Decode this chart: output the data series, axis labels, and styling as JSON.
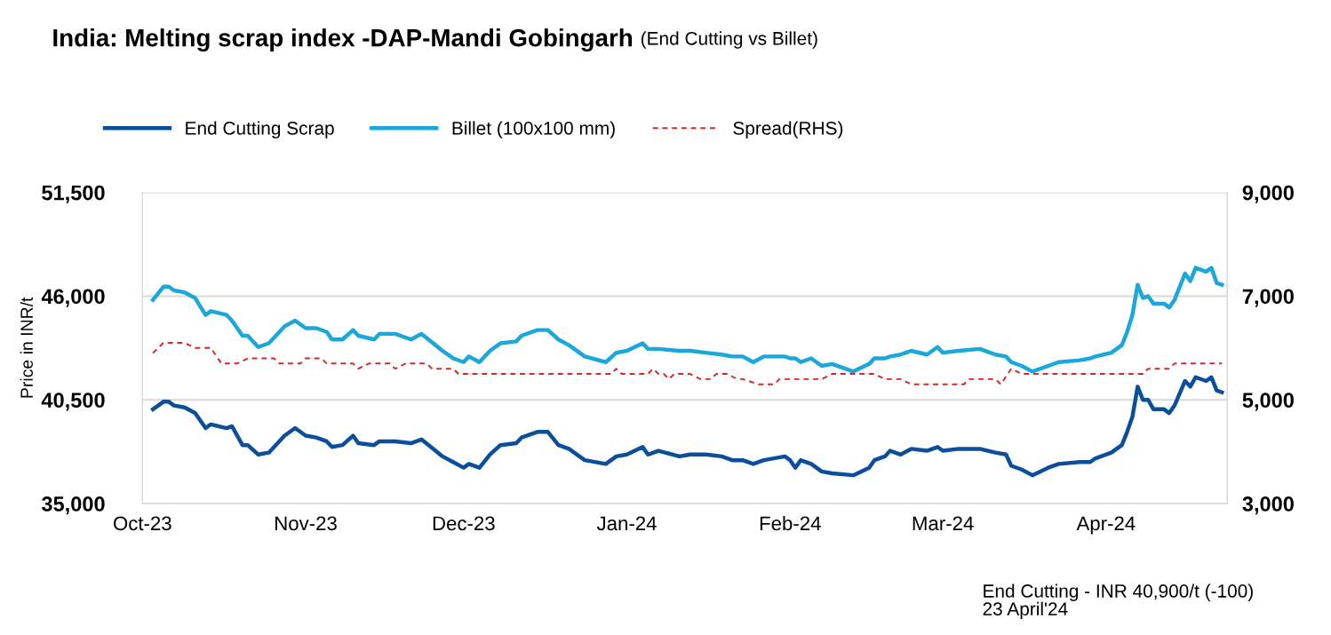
{
  "chart_data": {
    "type": "line",
    "title": "India: Melting scrap index -DAP-Mandi Gobingarh",
    "subtitle": "(End Cutting vs Billet)",
    "ylabel": "Price in INR/t",
    "x": [
      "2023-10-03",
      "2023-10-05",
      "2023-10-06",
      "2023-10-07",
      "2023-10-09",
      "2023-10-11",
      "2023-10-13",
      "2023-10-14",
      "2023-10-17",
      "2023-10-18",
      "2023-10-20",
      "2023-10-21",
      "2023-10-23",
      "2023-10-25",
      "2023-10-28",
      "2023-10-30",
      "2023-11-01",
      "2023-11-03",
      "2023-11-05",
      "2023-11-06",
      "2023-11-08",
      "2023-11-10",
      "2023-11-11",
      "2023-11-14",
      "2023-11-15",
      "2023-11-18",
      "2023-11-21",
      "2023-11-23",
      "2023-11-27",
      "2023-11-29",
      "2023-12-01",
      "2023-12-02",
      "2023-12-04",
      "2023-12-06",
      "2023-12-08",
      "2023-12-11",
      "2023-12-12",
      "2023-12-15",
      "2023-12-17",
      "2023-12-19",
      "2023-12-21",
      "2023-12-24",
      "2023-12-28",
      "2023-12-30",
      "2024-01-01",
      "2024-01-04",
      "2024-01-05",
      "2024-01-07",
      "2024-01-11",
      "2024-01-13",
      "2024-01-16",
      "2024-01-19",
      "2024-01-21",
      "2024-01-23",
      "2024-01-25",
      "2024-01-27",
      "2024-01-31",
      "2024-02-01",
      "2024-02-02",
      "2024-02-03",
      "2024-02-05",
      "2024-02-07",
      "2024-02-09",
      "2024-02-13",
      "2024-02-16",
      "2024-02-17",
      "2024-02-19",
      "2024-02-20",
      "2024-02-22",
      "2024-02-24",
      "2024-02-27",
      "2024-02-29",
      "2024-03-01",
      "2024-03-04",
      "2024-03-08",
      "2024-03-11",
      "2024-03-13",
      "2024-03-14",
      "2024-03-16",
      "2024-03-18",
      "2024-03-21",
      "2024-03-23",
      "2024-03-27",
      "2024-03-29",
      "2024-03-30",
      "2024-04-02",
      "2024-04-04",
      "2024-04-05",
      "2024-04-06",
      "2024-04-07",
      "2024-04-08",
      "2024-04-09",
      "2024-04-10",
      "2024-04-12",
      "2024-04-13",
      "2024-04-14",
      "2024-04-16",
      "2024-04-17",
      "2024-04-18",
      "2024-04-20",
      "2024-04-21",
      "2024-04-22",
      "2024-04-23"
    ],
    "series": [
      {
        "name": "End Cutting Scrap",
        "color": "#0b4f9c",
        "line_style": "solid",
        "values": [
          40000,
          40400,
          40400,
          40200,
          40100,
          39800,
          39000,
          39200,
          39000,
          39100,
          38100,
          38100,
          37600,
          37700,
          38600,
          39000,
          38600,
          38500,
          38300,
          38000,
          38100,
          38600,
          38200,
          38100,
          38300,
          38300,
          38200,
          38400,
          37500,
          37200,
          36900,
          37100,
          36900,
          37600,
          38100,
          38200,
          38500,
          38800,
          38800,
          38100,
          37900,
          37300,
          37100,
          37500,
          37600,
          38000,
          37600,
          37800,
          37500,
          37600,
          37600,
          37500,
          37300,
          37300,
          37100,
          37300,
          37500,
          37300,
          36900,
          37300,
          37100,
          36700,
          36600,
          36500,
          36900,
          37300,
          37500,
          37800,
          37600,
          37900,
          37800,
          38000,
          37800,
          37900,
          37900,
          37700,
          37600,
          37000,
          36800,
          36500,
          36900,
          37100,
          37200,
          37200,
          37400,
          37700,
          38100,
          38800,
          39600,
          41200,
          40500,
          40500,
          40000,
          40000,
          39800,
          40200,
          41500,
          41200,
          41700,
          41500,
          41700,
          41000,
          40900
        ]
      },
      {
        "name": "Billet (100x100 mm)",
        "color": "#1aa7dc",
        "line_style": "solid",
        "values": [
          45800,
          46500,
          46500,
          46300,
          46200,
          45900,
          45000,
          45200,
          45000,
          44700,
          43900,
          43900,
          43300,
          43500,
          44400,
          44700,
          44300,
          44300,
          44100,
          43700,
          43700,
          44200,
          43900,
          43700,
          44000,
          44000,
          43700,
          44000,
          43100,
          42700,
          42500,
          42800,
          42500,
          43100,
          43500,
          43600,
          43900,
          44200,
          44200,
          43700,
          43400,
          42800,
          42500,
          43000,
          43100,
          43500,
          43200,
          43200,
          43100,
          43100,
          43000,
          42900,
          42800,
          42800,
          42500,
          42800,
          42800,
          42700,
          42700,
          42500,
          42700,
          42300,
          42400,
          42000,
          42400,
          42700,
          42700,
          42800,
          42900,
          43100,
          42900,
          43300,
          43000,
          43100,
          43200,
          42900,
          42800,
          42500,
          42300,
          42000,
          42300,
          42500,
          42600,
          42700,
          42800,
          43000,
          43400,
          44100,
          45000,
          46600,
          45900,
          46000,
          45600,
          45600,
          45400,
          45800,
          47200,
          46800,
          47500,
          47300,
          47500,
          46700,
          46600
        ]
      },
      {
        "name": "Spread(RHS)",
        "color": "#d62728",
        "line_style": "dashed",
        "axis": "y2",
        "x": [
          "2023-10-03",
          "2023-10-05",
          "2023-10-09",
          "2023-10-11",
          "2023-10-14",
          "2023-10-16",
          "2023-10-19",
          "2023-10-21",
          "2023-10-26",
          "2023-10-27",
          "2023-10-31",
          "2023-11-01",
          "2023-11-04",
          "2023-11-05",
          "2023-11-10",
          "2023-11-11",
          "2023-11-13",
          "2023-11-17",
          "2023-11-18",
          "2023-11-20",
          "2023-11-24",
          "2023-11-25",
          "2023-11-29",
          "2023-11-30",
          "2023-12-29",
          "2023-12-30",
          "2023-12-31",
          "2024-01-05",
          "2024-01-06",
          "2024-01-07",
          "2024-01-08",
          "2024-01-09",
          "2024-01-10",
          "2024-01-13",
          "2024-01-15",
          "2024-01-17",
          "2024-01-18",
          "2024-01-20",
          "2024-01-22",
          "2024-01-23",
          "2024-01-26",
          "2024-01-29",
          "2024-01-30",
          "2024-02-07",
          "2024-02-09",
          "2024-02-17",
          "2024-02-19",
          "2024-02-22",
          "2024-02-24",
          "2024-03-05",
          "2024-03-06",
          "2024-03-11",
          "2024-03-12",
          "2024-03-14",
          "2024-03-16",
          "2024-03-17",
          "2024-04-08",
          "2024-04-09",
          "2024-04-13",
          "2024-04-14",
          "2024-04-23"
        ],
        "values": [
          5900,
          6100,
          6100,
          6000,
          6000,
          5700,
          5700,
          5800,
          5800,
          5700,
          5700,
          5800,
          5800,
          5700,
          5700,
          5600,
          5700,
          5700,
          5600,
          5700,
          5700,
          5600,
          5600,
          5500,
          5500,
          5600,
          5500,
          5500,
          5600,
          5500,
          5500,
          5400,
          5500,
          5500,
          5400,
          5400,
          5500,
          5500,
          5400,
          5400,
          5300,
          5300,
          5400,
          5400,
          5500,
          5500,
          5400,
          5400,
          5300,
          5300,
          5400,
          5400,
          5300,
          5600,
          5500,
          5500,
          5500,
          5600,
          5600,
          5700,
          5700
        ]
      }
    ],
    "xlim": [
      "2023-10-01",
      "2024-04-24"
    ],
    "xticks": [
      {
        "value": "2023-10-01",
        "label": "Oct-23"
      },
      {
        "value": "2023-11-01",
        "label": "Nov-23"
      },
      {
        "value": "2023-12-01",
        "label": "Dec-23"
      },
      {
        "value": "2024-01-01",
        "label": "Jan-24"
      },
      {
        "value": "2024-02-01",
        "label": "Feb-24"
      },
      {
        "value": "2024-03-01",
        "label": "Mar-24"
      },
      {
        "value": "2024-04-01",
        "label": "Apr-24"
      }
    ],
    "ylim": [
      35000,
      51500
    ],
    "yticks": [
      {
        "value": 35000,
        "label": "35,000"
      },
      {
        "value": 40500,
        "label": "40,500"
      },
      {
        "value": 46000,
        "label": "46,000"
      },
      {
        "value": 51500,
        "label": "51,500"
      }
    ],
    "y2lim": [
      3000,
      9000
    ],
    "y2ticks": [
      {
        "value": 3000,
        "label": "3,000"
      },
      {
        "value": 5000,
        "label": "5,000"
      },
      {
        "value": 7000,
        "label": "7,000"
      },
      {
        "value": 9000,
        "label": "9,000"
      }
    ],
    "grid": "y",
    "legend": "top",
    "marker": "none",
    "annotations": [
      "End Cutting - INR 40,900/t (-100)\n23 April'24"
    ]
  }
}
